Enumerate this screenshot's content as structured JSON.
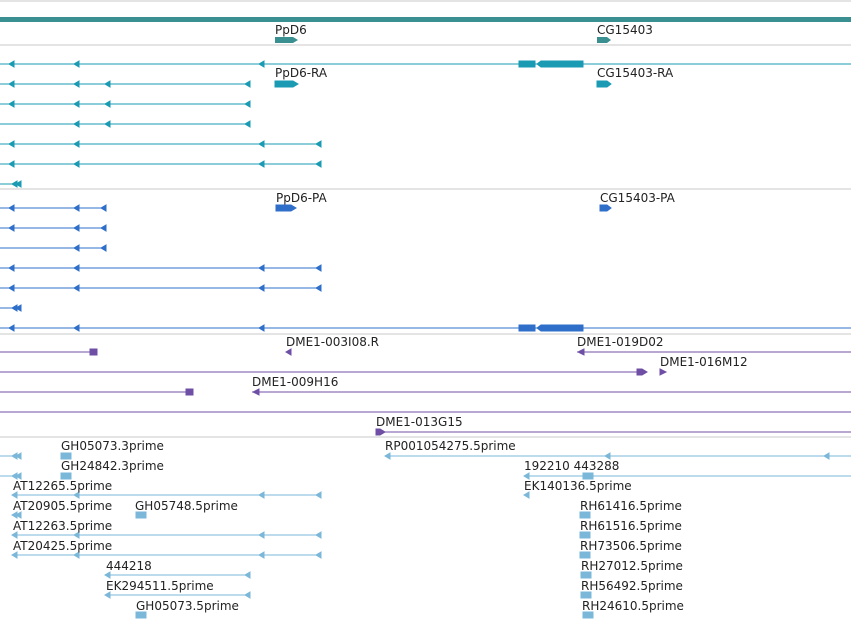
{
  "colors": {
    "gene": "#3a9091",
    "transcript": "#1b9bb3",
    "protein": "#2f6fc9",
    "clone": "#6f4fa5",
    "est": "#7ab7d8",
    "divider": "#c8c8c8"
  },
  "genes": {
    "labels": [
      "PpD6",
      "CG15403"
    ]
  },
  "transcripts": {
    "labels": [
      "PpD6-RA",
      "CG15403-RA"
    ]
  },
  "proteins": {
    "labels": [
      "PpD6-PA",
      "CG15403-PA"
    ]
  },
  "clones": {
    "labels": [
      "DME1-003I08.R",
      "DME1-019D02",
      "DME1-016M12",
      "DME1-009H16",
      "DME1-013G15"
    ]
  },
  "ests": {
    "labels": [
      "GH05073.3prime",
      "RP001054275.5prime",
      "GH24842.3prime",
      "192210 443288",
      "AT12265.5prime",
      "EK140136.5prime",
      "AT20905.5prime",
      "GH05748.5prime",
      "RH61416.5prime",
      "AT12263.5prime",
      "RH61516.5prime",
      "AT20425.5prime",
      "RH73506.5prime",
      "444218",
      "RH27012.5prime",
      "EK294511.5prime",
      "RH56492.5prime",
      "GH05073.5prime",
      "RH24610.5prime"
    ]
  }
}
